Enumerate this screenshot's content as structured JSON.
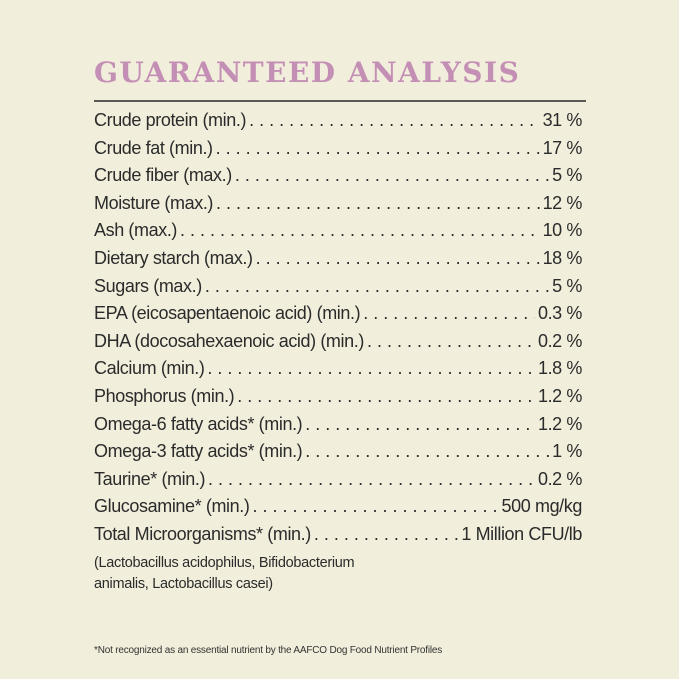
{
  "title": "GUARANTEED ANALYSIS",
  "rows": [
    {
      "label": "Crude protein (min.)",
      "value": "31 %"
    },
    {
      "label": "Crude fat (min.)",
      "value": "17 %"
    },
    {
      "label": "Crude fiber (max.)",
      "value": "5 %"
    },
    {
      "label": "Moisture (max.)",
      "value": "12 %"
    },
    {
      "label": "Ash (max.)",
      "value": "10 %"
    },
    {
      "label": "Dietary starch (max.)",
      "value": "18 %"
    },
    {
      "label": "Sugars (max.)",
      "value": "5 %"
    },
    {
      "label": "EPA (eicosapentaenoic acid) (min.)",
      "value": "0.3 %"
    },
    {
      "label": "DHA (docosahexaenoic acid) (min.)",
      "value": "0.2 %"
    },
    {
      "label": "Calcium (min.)",
      "value": "1.8 %"
    },
    {
      "label": "Phosphorus (min.)",
      "value": "1.2 %"
    },
    {
      "label": "Omega-6 fatty acids* (min.)",
      "value": "1.2 %"
    },
    {
      "label": "Omega-3 fatty acids* (min.)",
      "value": "1 %"
    },
    {
      "label": "Taurine* (min.)",
      "value": "0.2 %"
    },
    {
      "label": "Glucosamine* (min.)",
      "value": "500 mg/kg"
    },
    {
      "label": "Total Microorganisms* (min.)",
      "value": "1 Million CFU/lb"
    }
  ],
  "microorganisms_note_line1": "(Lactobacillus acidophilus, Bifidobacterium",
  "microorganisms_note_line2": "animalis, Lactobacillus casei)",
  "footnote": "*Not recognized as an essential nutrient by the AAFCO Dog Food Nutrient Profiles",
  "colors": {
    "background": "#f1eedb",
    "title": "#c48fb5",
    "text": "#2b2b2b"
  }
}
